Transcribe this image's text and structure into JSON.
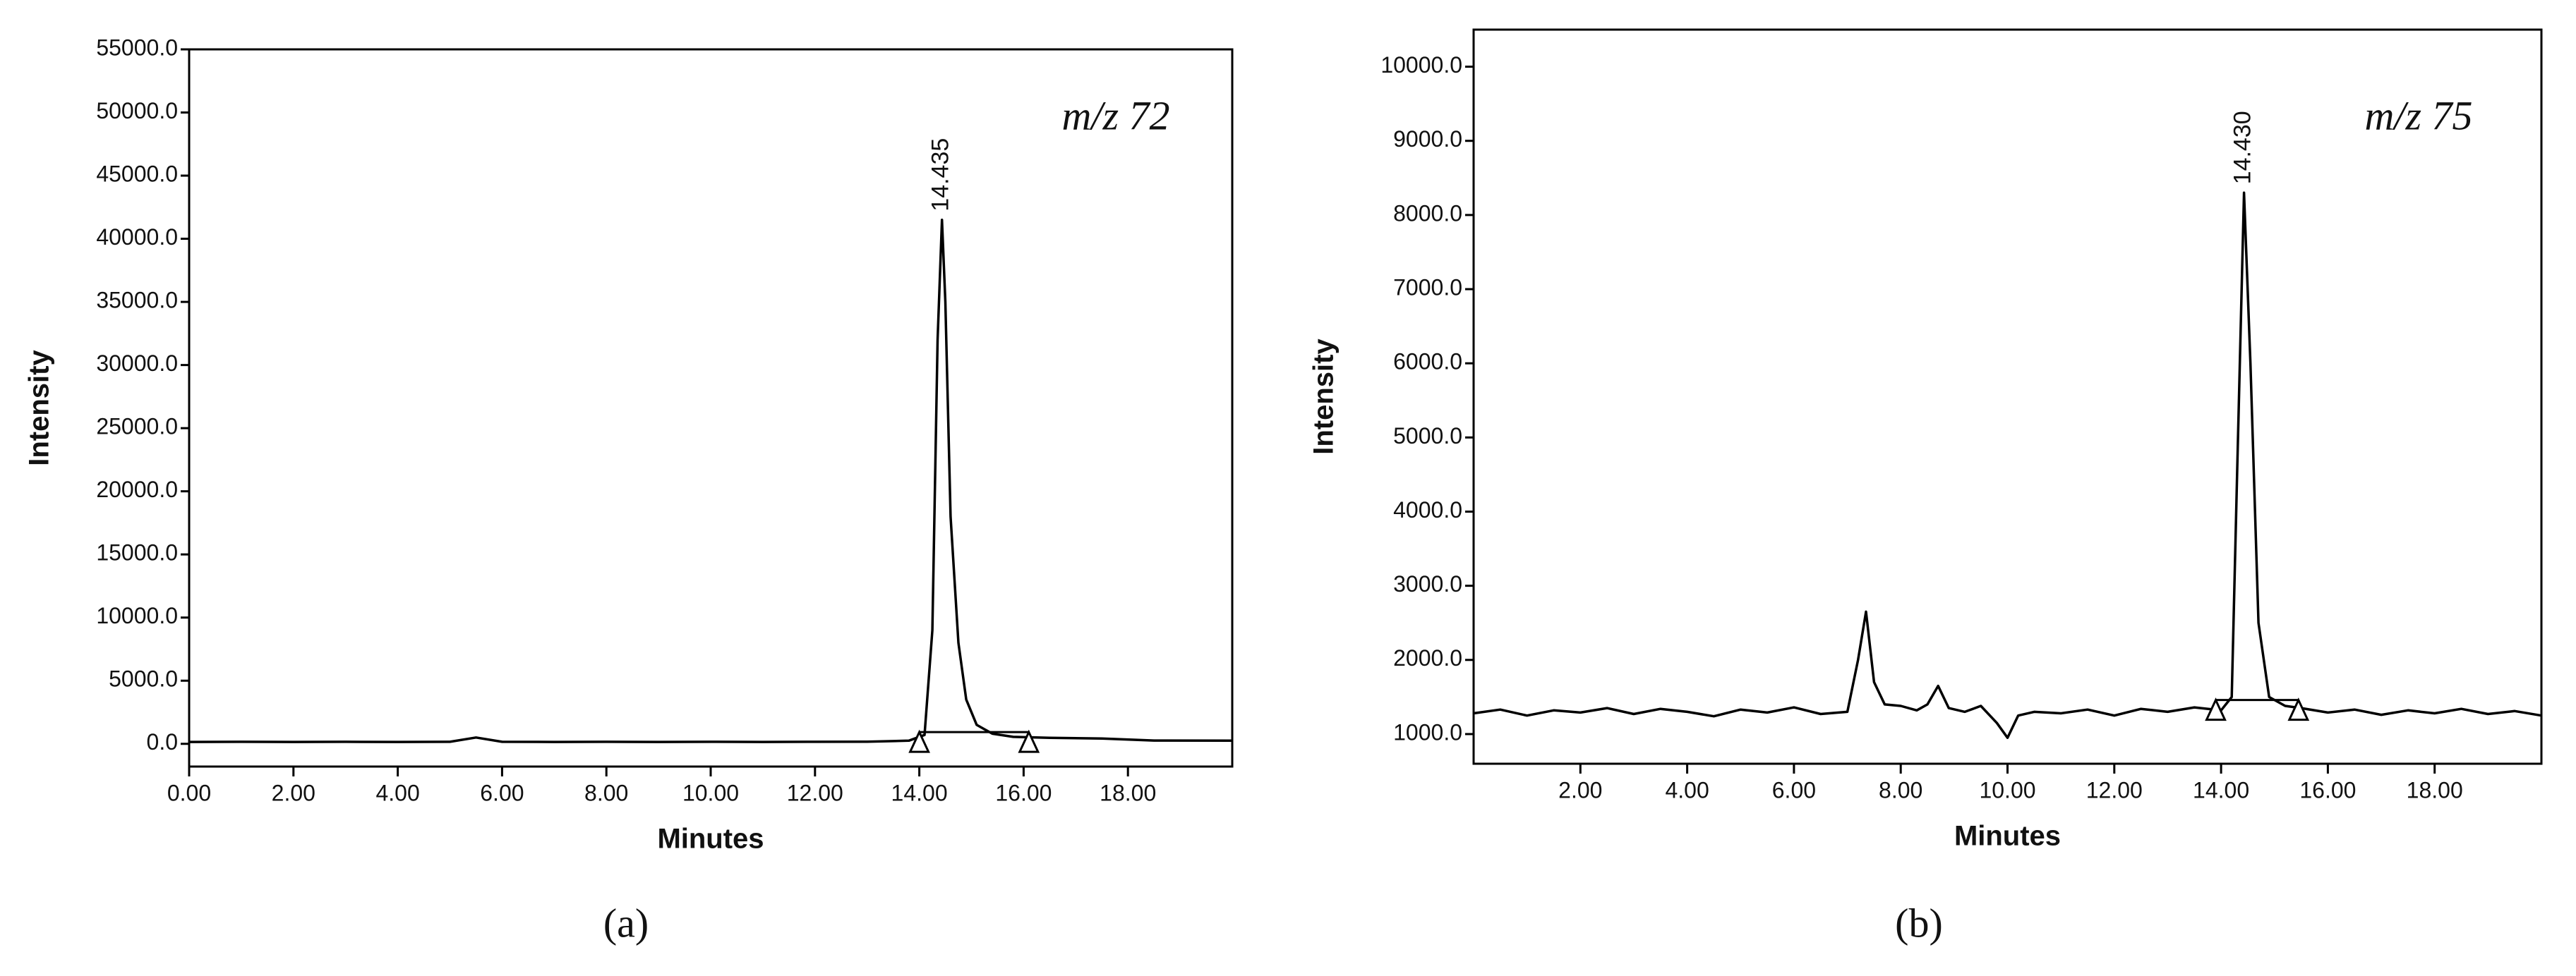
{
  "chart_data": [
    {
      "type": "line",
      "label": "m/z 72",
      "panel": "(a)",
      "x_label": "Minutes",
      "y_label": "Intensity",
      "color": "#000000",
      "x": [
        0,
        1,
        2,
        3,
        4,
        5,
        5.5,
        6,
        7,
        8,
        9,
        10,
        11,
        12,
        13,
        13.8,
        14.1,
        14.25,
        14.35,
        14.435,
        14.5,
        14.6,
        14.75,
        14.9,
        15.1,
        15.4,
        15.8,
        16.5,
        17.5,
        18.5,
        20
      ],
      "values": [
        150,
        160,
        150,
        160,
        150,
        160,
        500,
        160,
        150,
        160,
        150,
        160,
        150,
        160,
        170,
        250,
        700,
        9000,
        32000,
        41500,
        35000,
        18000,
        8000,
        3500,
        1500,
        800,
        550,
        480,
        420,
        260,
        250
      ],
      "annotations": [
        {
          "text": "14.435",
          "x": 14.435,
          "y": 41500
        }
      ],
      "baseline_markers": {
        "x": [
          14.0,
          16.1
        ],
        "y": [
          -300,
          -300
        ]
      },
      "xlim": [
        0,
        20
      ],
      "ylim": [
        -1800,
        55000
      ],
      "xticks": [
        {
          "value": 0,
          "label": "0.00"
        },
        {
          "value": 2,
          "label": "2.00"
        },
        {
          "value": 4,
          "label": "4.00"
        },
        {
          "value": 6,
          "label": "6.00"
        },
        {
          "value": 8,
          "label": "8.00"
        },
        {
          "value": 10,
          "label": "10.00"
        },
        {
          "value": 12,
          "label": "12.00"
        },
        {
          "value": 14,
          "label": "14.00"
        },
        {
          "value": 16,
          "label": "16.00"
        },
        {
          "value": 18,
          "label": "18.00"
        }
      ],
      "yticks": [
        {
          "value": 0,
          "label": "0.0"
        },
        {
          "value": 5000,
          "label": "5000.0"
        },
        {
          "value": 10000,
          "label": "10000.0"
        },
        {
          "value": 15000,
          "label": "15000.0"
        },
        {
          "value": 20000,
          "label": "20000.0"
        },
        {
          "value": 25000,
          "label": "25000.0"
        },
        {
          "value": 30000,
          "label": "30000.0"
        },
        {
          "value": 35000,
          "label": "35000.0"
        },
        {
          "value": 40000,
          "label": "40000.0"
        },
        {
          "value": 45000,
          "label": "45000.0"
        },
        {
          "value": 50000,
          "label": "50000.0"
        },
        {
          "value": 55000,
          "label": "55000.0"
        }
      ]
    },
    {
      "type": "line",
      "label": "m/z 75",
      "panel": "(b)",
      "x_label": "Minutes",
      "y_label": "Intensity",
      "color": "#000000",
      "x": [
        0,
        0.5,
        1,
        1.5,
        2,
        2.5,
        3,
        3.5,
        4,
        4.5,
        5,
        5.5,
        6,
        6.5,
        7,
        7.2,
        7.35,
        7.5,
        7.7,
        8,
        8.3,
        8.5,
        8.7,
        8.9,
        9.2,
        9.5,
        9.8,
        10,
        10.2,
        10.5,
        11,
        11.5,
        12,
        12.5,
        13,
        13.5,
        14,
        14.2,
        14.3,
        14.43,
        14.55,
        14.7,
        14.9,
        15.2,
        15.5,
        16,
        16.5,
        17,
        17.5,
        18,
        18.5,
        19,
        19.5,
        20
      ],
      "values": [
        1280,
        1330,
        1250,
        1320,
        1290,
        1350,
        1270,
        1340,
        1300,
        1240,
        1330,
        1290,
        1360,
        1270,
        1300,
        2000,
        2650,
        1700,
        1400,
        1380,
        1320,
        1400,
        1650,
        1350,
        1300,
        1380,
        1150,
        950,
        1250,
        1300,
        1280,
        1330,
        1250,
        1340,
        1300,
        1360,
        1320,
        1500,
        4500,
        8300,
        6000,
        2500,
        1500,
        1380,
        1350,
        1290,
        1330,
        1260,
        1320,
        1280,
        1340,
        1270,
        1310,
        1250
      ],
      "annotations": [
        {
          "text": "14.430",
          "x": 14.43,
          "y": 8300
        }
      ],
      "baseline_markers": {
        "x": [
          13.9,
          15.45
        ],
        "y": [
          1250,
          1250
        ]
      },
      "xlim": [
        0,
        20
      ],
      "ylim": [
        600,
        10500
      ],
      "xticks": [
        {
          "value": 2,
          "label": "2.00"
        },
        {
          "value": 4,
          "label": "4.00"
        },
        {
          "value": 6,
          "label": "6.00"
        },
        {
          "value": 8,
          "label": "8.00"
        },
        {
          "value": 10,
          "label": "10.00"
        },
        {
          "value": 12,
          "label": "12.00"
        },
        {
          "value": 14,
          "label": "14.00"
        },
        {
          "value": 16,
          "label": "16.00"
        },
        {
          "value": 18,
          "label": "18.00"
        }
      ],
      "yticks": [
        {
          "value": 1000,
          "label": "1000.0"
        },
        {
          "value": 2000,
          "label": "2000.0"
        },
        {
          "value": 3000,
          "label": "3000.0"
        },
        {
          "value": 4000,
          "label": "4000.0"
        },
        {
          "value": 5000,
          "label": "5000.0"
        },
        {
          "value": 6000,
          "label": "6000.0"
        },
        {
          "value": 7000,
          "label": "7000.0"
        },
        {
          "value": 8000,
          "label": "8000.0"
        },
        {
          "value": 9000,
          "label": "9000.0"
        },
        {
          "value": 10000,
          "label": "10000.0"
        }
      ]
    }
  ]
}
